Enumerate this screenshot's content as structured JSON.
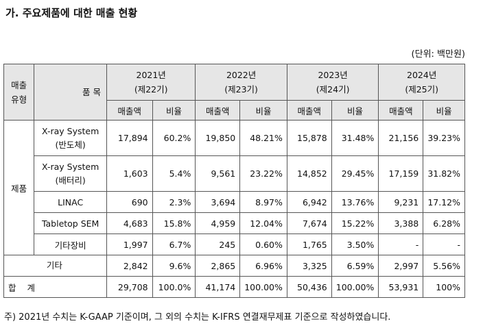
{
  "title": "가. 주요제품에 대한 매출 현황",
  "unit": "(단위: 백만원)",
  "headers": {
    "type": "매출\n유형",
    "item": "품 목",
    "years": [
      {
        "year": "2021년",
        "term": "(제22기)"
      },
      {
        "year": "2022년",
        "term": "(제23기)"
      },
      {
        "year": "2023년",
        "term": "(제24기)"
      },
      {
        "year": "2024년",
        "term": "(제25기)"
      }
    ],
    "sales": "매출액",
    "ratio": "비율"
  },
  "group_product": "제품",
  "rows": [
    {
      "name": "X-ray System\n(반도체)",
      "vals": [
        "17,894",
        "60.2%",
        "19,850",
        "48.21%",
        "15,878",
        "31.48%",
        "21,156",
        "39.23%"
      ]
    },
    {
      "name": "X-ray System\n(배터리)",
      "vals": [
        "1,603",
        "5.4%",
        "9,561",
        "23.22%",
        "14,852",
        "29.45%",
        "17,159",
        "31.82%"
      ]
    },
    {
      "name": "LINAC",
      "vals": [
        "690",
        "2.3%",
        "3,694",
        "8.97%",
        "6,942",
        "13.76%",
        "9,231",
        "17.12%"
      ]
    },
    {
      "name": "Tabletop SEM",
      "vals": [
        "4,683",
        "15.8%",
        "4,959",
        "12.04%",
        "7,674",
        "15.22%",
        "3,388",
        "6.28%"
      ]
    },
    {
      "name": "기타장비",
      "vals": [
        "1,997",
        "6.7%",
        "245",
        "0.60%",
        "1,765",
        "3.50%",
        "-",
        "-"
      ]
    }
  ],
  "other": {
    "name": "기타",
    "vals": [
      "2,842",
      "9.6%",
      "2,865",
      "6.96%",
      "3,325",
      "6.59%",
      "2,997",
      "5.56%"
    ]
  },
  "total": {
    "name": "합 계",
    "vals": [
      "29,708",
      "100.0%",
      "41,174",
      "100.00%",
      "50,436",
      "100.00%",
      "53,931",
      "100%"
    ]
  },
  "footnote": "주) 2021년 수치는 K-GAAP 기준이며, 그 외의 수치는 K-IFRS 연결재무제표 기준으로 작성하였습니다."
}
